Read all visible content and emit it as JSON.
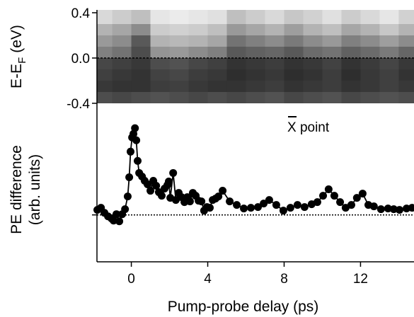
{
  "chart_data": [
    {
      "type": "heatmap",
      "ylabel": "E-E",
      "ylabel_subscript": "F",
      "ylabel_unit": "(eV)",
      "xlim": [
        -1.8,
        14.8
      ],
      "ylim": [
        -0.4,
        0.425
      ],
      "yticks": [
        0.4,
        {
          "value": 0,
          "label": "0.0"
        },
        -0.4
      ],
      "zero_line": 0,
      "x": [
        -1.5,
        -0.5,
        0.5,
        1.5,
        2.5,
        3.5,
        4.5,
        5.5,
        6.5,
        7.5,
        8.5,
        9.5,
        10.5,
        11.5,
        12.5,
        13.5,
        14.5
      ],
      "y": [
        0.35,
        0.25,
        0.15,
        0.05,
        -0.05,
        -0.15,
        -0.25,
        -0.35
      ],
      "z": [
        [
          0.15,
          0.2,
          0.25,
          0.1,
          0.08,
          0.1,
          0.12,
          0.25,
          0.2,
          0.15,
          0.22,
          0.18,
          0.12,
          0.2,
          0.15,
          0.1,
          0.18
        ],
        [
          0.3,
          0.35,
          0.45,
          0.2,
          0.18,
          0.2,
          0.25,
          0.4,
          0.35,
          0.3,
          0.38,
          0.3,
          0.25,
          0.35,
          0.3,
          0.22,
          0.3
        ],
        [
          0.4,
          0.45,
          0.65,
          0.3,
          0.28,
          0.3,
          0.35,
          0.55,
          0.5,
          0.45,
          0.52,
          0.45,
          0.4,
          0.5,
          0.45,
          0.38,
          0.45
        ],
        [
          0.5,
          0.55,
          0.7,
          0.42,
          0.4,
          0.45,
          0.5,
          0.65,
          0.62,
          0.6,
          0.65,
          0.58,
          0.55,
          0.62,
          0.58,
          0.52,
          0.6
        ],
        [
          0.72,
          0.75,
          0.78,
          0.7,
          0.68,
          0.72,
          0.75,
          0.8,
          0.78,
          0.76,
          0.8,
          0.78,
          0.74,
          0.8,
          0.77,
          0.73,
          0.78
        ],
        [
          0.75,
          0.78,
          0.8,
          0.74,
          0.72,
          0.76,
          0.78,
          0.82,
          0.8,
          0.78,
          0.82,
          0.8,
          0.76,
          0.82,
          0.78,
          0.75,
          0.8
        ],
        [
          0.78,
          0.8,
          0.8,
          0.76,
          0.75,
          0.78,
          0.8,
          0.8,
          0.78,
          0.76,
          0.8,
          0.78,
          0.76,
          0.8,
          0.78,
          0.75,
          0.78
        ],
        [
          0.7,
          0.72,
          0.7,
          0.68,
          0.7,
          0.72,
          0.7,
          0.72,
          0.7,
          0.68,
          0.72,
          0.7,
          0.68,
          0.72,
          0.7,
          0.68,
          0.7
        ]
      ]
    },
    {
      "type": "line",
      "xlabel": "Pump-probe delay (ps)",
      "ylabel": [
        "PE difference",
        "(arb. units)"
      ],
      "annotation": "X point",
      "xlim": [
        -1.8,
        14.8
      ],
      "ylim": [
        -0.66,
        1.57
      ],
      "xticks": [
        0,
        4,
        8,
        12
      ],
      "zero_line": 0,
      "series": [
        {
          "color": "#000000",
          "x": [
            -1.78,
            -1.59,
            -1.41,
            -1.22,
            -1.04,
            -0.93,
            -0.78,
            -0.63,
            -0.48,
            -0.33,
            -0.19,
            -0.11,
            -0.04,
            0.04,
            0.11,
            0.19,
            0.26,
            0.33,
            0.41,
            0.56,
            0.7,
            0.85,
            1.0,
            1.15,
            1.3,
            1.44,
            1.59,
            1.74,
            1.89,
            1.96,
            2.04,
            2.19,
            2.33,
            2.48,
            2.63,
            2.78,
            2.93,
            3.07,
            3.22,
            3.37,
            3.52,
            3.67,
            3.81,
            3.96,
            4.11,
            4.26,
            4.41,
            4.56,
            4.78,
            5.15,
            5.52,
            5.89,
            6.26,
            6.63,
            6.93,
            7.22,
            7.59,
            7.96,
            8.33,
            8.7,
            9.07,
            9.44,
            9.74,
            10.04,
            10.33,
            10.63,
            10.93,
            11.22,
            11.52,
            11.81,
            12.11,
            12.41,
            12.7,
            13.07,
            13.44,
            13.74,
            14.04,
            14.41,
            14.7
          ],
          "values": [
            0.07,
            0.1,
            0.03,
            -0.02,
            -0.05,
            -0.08,
            0.01,
            -0.09,
            0.01,
            0.08,
            0.26,
            0.53,
            0.89,
            1.09,
            1.14,
            1.22,
            1.05,
            0.76,
            0.59,
            0.54,
            0.48,
            0.43,
            0.34,
            0.48,
            0.41,
            0.32,
            0.27,
            0.37,
            0.42,
            0.47,
            0.24,
            0.59,
            0.21,
            0.31,
            0.25,
            0.18,
            0.25,
            0.19,
            0.31,
            0.27,
            0.2,
            0.19,
            0.06,
            0.11,
            0.1,
            0.21,
            0.23,
            0.26,
            0.34,
            0.19,
            0.14,
            0.09,
            0.1,
            0.11,
            0.16,
            0.21,
            0.14,
            0.06,
            0.1,
            0.14,
            0.11,
            0.15,
            0.18,
            0.27,
            0.36,
            0.27,
            0.18,
            0.1,
            0.14,
            0.24,
            0.3,
            0.14,
            0.12,
            0.08,
            0.09,
            0.08,
            0.07,
            0.09,
            0.1
          ]
        }
      ]
    }
  ]
}
